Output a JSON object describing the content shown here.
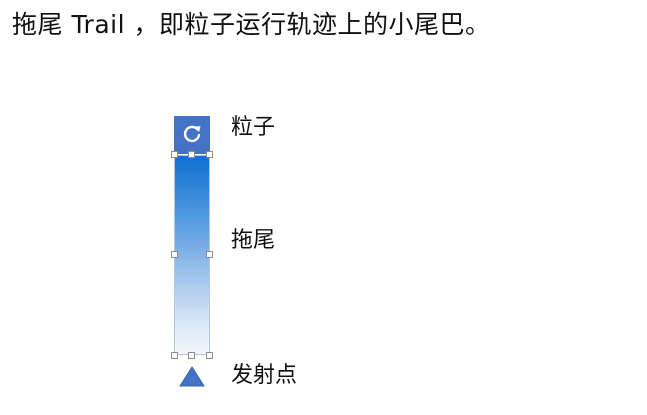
{
  "heading": "拖尾 Trail ，即粒子运行轨迹上的小尾巴。",
  "labels": {
    "particle": "粒子",
    "trail": "拖尾",
    "emitter": "发射点"
  },
  "icons": {
    "particle": "rotate-icon",
    "emitter": "triangle-icon"
  },
  "colors": {
    "particle_fill": "#4472c4",
    "trail_top": "#0f6fd1",
    "trail_bottom": "#f2f6fc",
    "emitter_fill": "#4472c4"
  }
}
